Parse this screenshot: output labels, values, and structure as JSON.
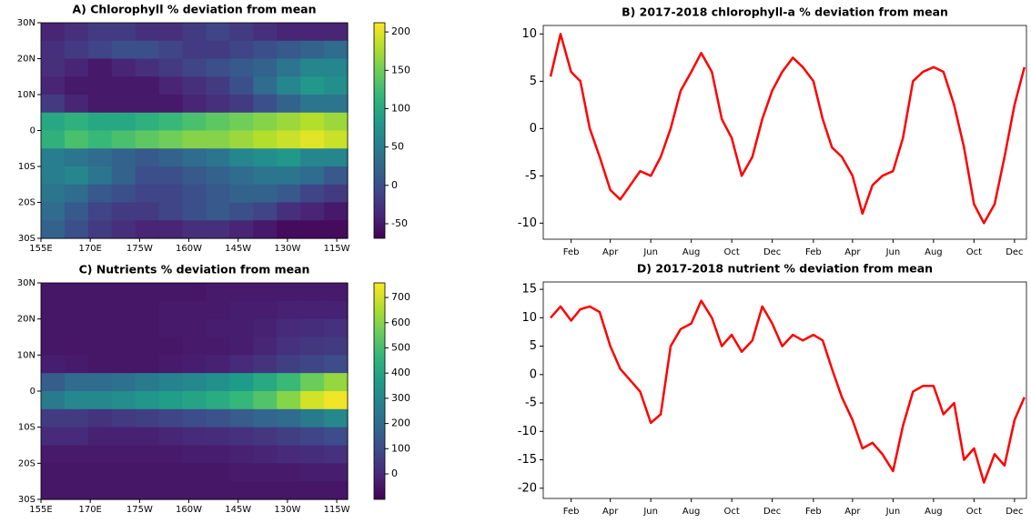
{
  "chart_data": [
    {
      "type": "heatmap",
      "title": "A) Chlorophyll % deviation from mean",
      "colormap": "viridis",
      "xlim": [
        155,
        248.3
      ],
      "ylim": [
        -30,
        30
      ],
      "xticks": [
        {
          "value": 155,
          "label": "155E"
        },
        {
          "value": 170,
          "label": "170E"
        },
        {
          "value": 185,
          "label": "175W"
        },
        {
          "value": 200,
          "label": "160W"
        },
        {
          "value": 215,
          "label": "145W"
        },
        {
          "value": 230,
          "label": "130W"
        },
        {
          "value": 245,
          "label": "115W"
        }
      ],
      "yticks": [
        {
          "value": 30,
          "label": "30N"
        },
        {
          "value": 20,
          "label": "20N"
        },
        {
          "value": 10,
          "label": "10N"
        },
        0,
        {
          "value": -10,
          "label": "10S"
        },
        {
          "value": -20,
          "label": "20S"
        },
        {
          "value": -30,
          "label": "30S"
        }
      ],
      "clim": [
        -69,
        212
      ],
      "cticks": [
        200,
        150,
        100,
        50,
        0,
        -50
      ],
      "values": [
        [
          -40,
          -30,
          -20,
          -20,
          -30,
          -30,
          -20,
          -10,
          -20,
          -30,
          -40,
          -40,
          -40
        ],
        [
          -30,
          -20,
          -10,
          0,
          0,
          -10,
          -20,
          -20,
          -10,
          0,
          10,
          20,
          30
        ],
        [
          -30,
          -40,
          -50,
          -40,
          -30,
          -20,
          -10,
          0,
          10,
          20,
          40,
          60,
          60
        ],
        [
          -40,
          -50,
          -50,
          -50,
          -50,
          -40,
          -30,
          -20,
          0,
          30,
          60,
          80,
          70
        ],
        [
          -20,
          -40,
          -50,
          -50,
          -50,
          -50,
          -40,
          -30,
          -20,
          0,
          20,
          40,
          40
        ],
        [
          100,
          110,
          100,
          100,
          110,
          120,
          130,
          140,
          150,
          160,
          170,
          180,
          170
        ],
        [
          110,
          130,
          120,
          130,
          140,
          150,
          160,
          160,
          170,
          180,
          190,
          200,
          190
        ],
        [
          50,
          40,
          30,
          20,
          10,
          20,
          30,
          40,
          60,
          70,
          80,
          60,
          60
        ],
        [
          50,
          60,
          40,
          20,
          0,
          0,
          10,
          20,
          30,
          40,
          40,
          30,
          10
        ],
        [
          40,
          30,
          10,
          0,
          -10,
          -10,
          0,
          10,
          20,
          20,
          10,
          -10,
          -20
        ],
        [
          30,
          10,
          -10,
          -20,
          -20,
          -10,
          0,
          10,
          0,
          -10,
          -30,
          -40,
          -50
        ],
        [
          20,
          0,
          -20,
          -30,
          -40,
          -40,
          -30,
          -30,
          -40,
          -50,
          -60,
          -60,
          -60
        ]
      ]
    },
    {
      "type": "line",
      "title": "B) 2017-2018 chlorophyll-a % deviation from mean",
      "color": "#ff0000",
      "xlim": [
        -11,
        717
      ],
      "ylim": [
        -11.7,
        10.9
      ],
      "xticks": [
        {
          "value": 31,
          "label": "Feb"
        },
        {
          "value": 90,
          "label": "Apr"
        },
        {
          "value": 151,
          "label": "Jun"
        },
        {
          "value": 212,
          "label": "Aug"
        },
        {
          "value": 273,
          "label": "Oct"
        },
        {
          "value": 334,
          "label": "Dec"
        },
        {
          "value": 396,
          "label": "Feb"
        },
        {
          "value": 455,
          "label": "Apr"
        },
        {
          "value": 516,
          "label": "Jun"
        },
        {
          "value": 577,
          "label": "Aug"
        },
        {
          "value": 638,
          "label": "Oct"
        },
        {
          "value": 699,
          "label": "Dec"
        }
      ],
      "yticks": [
        10,
        5,
        0,
        -5,
        -10
      ],
      "x": [
        0,
        15,
        31,
        45,
        59,
        74,
        90,
        105,
        120,
        135,
        151,
        166,
        181,
        196,
        212,
        227,
        243,
        258,
        273,
        288,
        304,
        319,
        334,
        349,
        365,
        380,
        396,
        410,
        424,
        439,
        455,
        470,
        485,
        500,
        516,
        531,
        546,
        561,
        577,
        592,
        608,
        623,
        638,
        653,
        669,
        684,
        699,
        714
      ],
      "values": [
        5.5,
        10,
        6,
        5,
        0,
        -3,
        -6.5,
        -7.5,
        -6,
        -4.5,
        -5,
        -3,
        0,
        4,
        6,
        8,
        6,
        1,
        -1,
        -5,
        -3,
        1,
        4,
        6,
        7.5,
        6.5,
        5,
        1,
        -2,
        -3,
        -5,
        -9,
        -6,
        -5,
        -4.5,
        -1,
        5,
        6,
        6.5,
        6,
        2.5,
        -2,
        -8,
        -10,
        -8,
        -3,
        2.5,
        6.5
      ]
    },
    {
      "type": "heatmap",
      "title": "C) Nutrients % deviation from mean",
      "colormap": "viridis",
      "xlim": [
        155,
        248.3
      ],
      "ylim": [
        -30,
        30
      ],
      "xticks": [
        {
          "value": 155,
          "label": "155E"
        },
        {
          "value": 170,
          "label": "170E"
        },
        {
          "value": 185,
          "label": "175W"
        },
        {
          "value": 200,
          "label": "160W"
        },
        {
          "value": 215,
          "label": "145W"
        },
        {
          "value": 230,
          "label": "130W"
        },
        {
          "value": 245,
          "label": "115W"
        }
      ],
      "yticks": [
        {
          "value": 30,
          "label": "30N"
        },
        {
          "value": 20,
          "label": "20N"
        },
        {
          "value": 10,
          "label": "10N"
        },
        0,
        {
          "value": -10,
          "label": "10S"
        },
        {
          "value": -20,
          "label": "20S"
        },
        {
          "value": -30,
          "label": "30S"
        }
      ],
      "clim": [
        -101,
        758
      ],
      "cticks": [
        700,
        600,
        500,
        400,
        300,
        200,
        100,
        0
      ],
      "values": [
        [
          -50,
          -50,
          -50,
          -50,
          -50,
          -50,
          -50,
          -40,
          -40,
          -40,
          -40,
          -40,
          -40
        ],
        [
          -50,
          -50,
          -50,
          -50,
          -50,
          -40,
          -40,
          -40,
          -30,
          -30,
          -20,
          -20,
          -20
        ],
        [
          -50,
          -50,
          -50,
          -50,
          -50,
          -40,
          -40,
          -30,
          -30,
          -20,
          0,
          10,
          20
        ],
        [
          -50,
          -50,
          -50,
          -50,
          -50,
          -50,
          -40,
          -40,
          -30,
          -10,
          20,
          40,
          50
        ],
        [
          -30,
          -40,
          -50,
          -50,
          -50,
          -40,
          -30,
          -20,
          0,
          30,
          60,
          80,
          100
        ],
        [
          150,
          200,
          200,
          220,
          250,
          280,
          300,
          330,
          370,
          420,
          480,
          560,
          620
        ],
        [
          250,
          300,
          300,
          320,
          350,
          380,
          400,
          430,
          470,
          520,
          600,
          700,
          740
        ],
        [
          50,
          50,
          30,
          50,
          60,
          80,
          100,
          120,
          150,
          180,
          200,
          250,
          300
        ],
        [
          0,
          0,
          -20,
          -20,
          -20,
          -10,
          0,
          10,
          20,
          40,
          60,
          80,
          100
        ],
        [
          -40,
          -40,
          -40,
          -40,
          -40,
          -40,
          -30,
          -30,
          -20,
          -10,
          0,
          10,
          20
        ],
        [
          -50,
          -50,
          -50,
          -50,
          -50,
          -50,
          -50,
          -50,
          -40,
          -40,
          -40,
          -30,
          -30
        ],
        [
          -50,
          -50,
          -50,
          -50,
          -50,
          -50,
          -50,
          -50,
          -50,
          -50,
          -50,
          -50,
          -50
        ]
      ]
    },
    {
      "type": "line",
      "title": "D) 2017-2018 nutrient % deviation from mean",
      "color": "#ff0000",
      "xlim": [
        -11,
        717
      ],
      "ylim": [
        -21.8,
        16.3
      ],
      "xticks": [
        {
          "value": 31,
          "label": "Feb"
        },
        {
          "value": 90,
          "label": "Apr"
        },
        {
          "value": 151,
          "label": "Jun"
        },
        {
          "value": 212,
          "label": "Aug"
        },
        {
          "value": 273,
          "label": "Oct"
        },
        {
          "value": 334,
          "label": "Dec"
        },
        {
          "value": 396,
          "label": "Feb"
        },
        {
          "value": 455,
          "label": "Apr"
        },
        {
          "value": 516,
          "label": "Jun"
        },
        {
          "value": 577,
          "label": "Aug"
        },
        {
          "value": 638,
          "label": "Oct"
        },
        {
          "value": 699,
          "label": "Dec"
        }
      ],
      "yticks": [
        15,
        10,
        5,
        0,
        -5,
        -10,
        -15,
        -20
      ],
      "x": [
        0,
        15,
        31,
        45,
        59,
        74,
        90,
        105,
        120,
        135,
        151,
        166,
        181,
        196,
        212,
        227,
        243,
        258,
        273,
        288,
        304,
        319,
        334,
        349,
        365,
        380,
        396,
        410,
        424,
        439,
        455,
        470,
        485,
        500,
        516,
        531,
        546,
        561,
        577,
        592,
        608,
        623,
        638,
        653,
        669,
        684,
        699,
        714
      ],
      "values": [
        10,
        12,
        9.5,
        11.5,
        12,
        11,
        5,
        1,
        -1,
        -3,
        -8.5,
        -7,
        5,
        8,
        9,
        13,
        10,
        5,
        7,
        4,
        6,
        12,
        9,
        5,
        7,
        6,
        7,
        6,
        1,
        -4,
        -8,
        -13,
        -12,
        -14,
        -17,
        -9,
        -3,
        -2,
        -2,
        -7,
        -5,
        -15,
        -13,
        -19,
        -14,
        -16,
        -8,
        -4
      ]
    }
  ]
}
